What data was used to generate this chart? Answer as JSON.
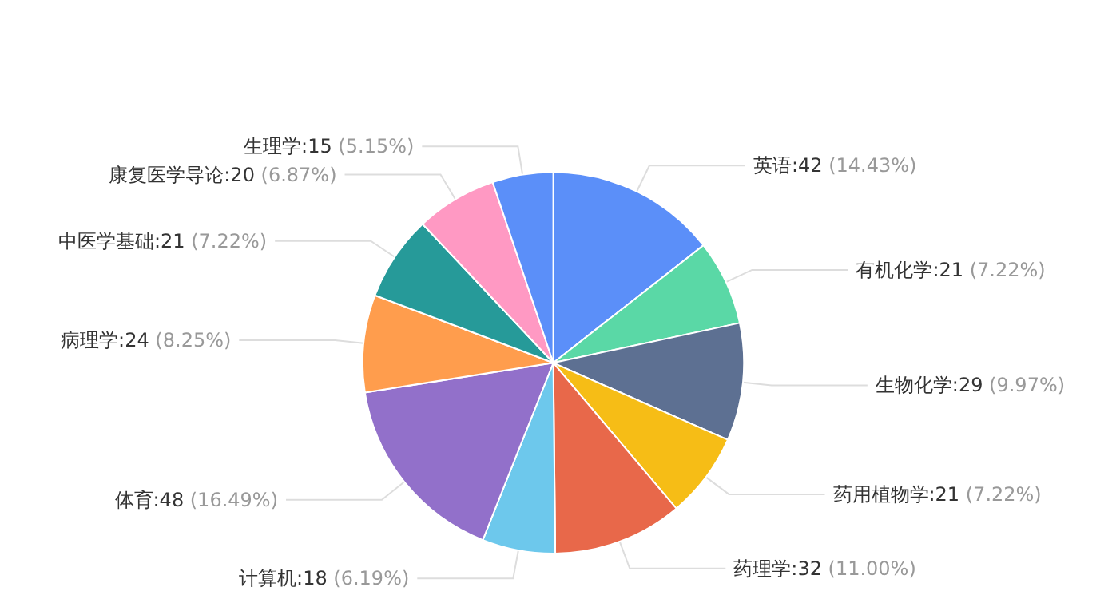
{
  "chart_data": {
    "type": "pie",
    "categories": [
      "英语:42",
      "有机化学:21",
      "生物化学:29",
      "药用植物学:21",
      "药理学:32",
      "计算机:18",
      "体育:48",
      "病理学:24",
      "中医学基础:21",
      "康复医学导论:20",
      "生理学:15"
    ],
    "values": [
      14.43,
      7.22,
      9.97,
      7.22,
      11.0,
      6.19,
      16.49,
      8.25,
      7.22,
      6.87,
      5.15
    ],
    "colors": [
      "#5b8ff9",
      "#5ad8a6",
      "#5d7092",
      "#f6bd16",
      "#e8684a",
      "#6dc8ec",
      "#9270ca",
      "#ff9d4d",
      "#269a99",
      "#ff99c3",
      "#5b8ff9"
    ],
    "value_labels": [
      "(14.43%)",
      "(7.22%)",
      "(9.97%)",
      "(7.22%)",
      "(11.00%)",
      "(6.19%)",
      "(16.49%)",
      "(8.25%)",
      "(7.22%)",
      "(6.87%)",
      "(5.15%)"
    ]
  }
}
